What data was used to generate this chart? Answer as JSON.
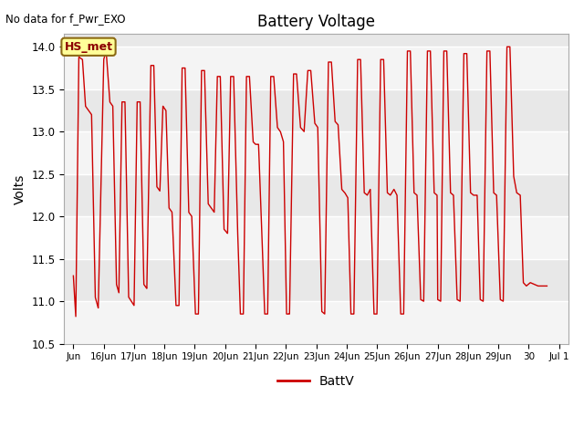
{
  "title": "Battery Voltage",
  "ylabel": "Volts",
  "annotation_text": "No data for f_Pwr_EXO",
  "legend_label": "BattV",
  "legend_line_color": "#cc0000",
  "line_color": "#cc0000",
  "box_label": "HS_met",
  "box_facecolor": "#ffff99",
  "box_edgecolor": "#8B6914",
  "box_text_color": "#8B0000",
  "ylim": [
    10.5,
    14.15
  ],
  "yticks": [
    10.5,
    11.0,
    11.5,
    12.0,
    12.5,
    13.0,
    13.5,
    14.0
  ],
  "background_plot": "#e8e8e8",
  "tick_labels": [
    "Jun",
    "16Jun",
    "17Jun",
    "18Jun",
    "19Jun",
    "20Jun",
    "21Jun",
    "22Jun",
    "23Jun",
    "24Jun",
    "25Jun",
    "26Jun",
    "27Jun",
    "28Jun",
    "29Jun",
    "30",
    "Jul 1"
  ],
  "linewidth": 1.0
}
